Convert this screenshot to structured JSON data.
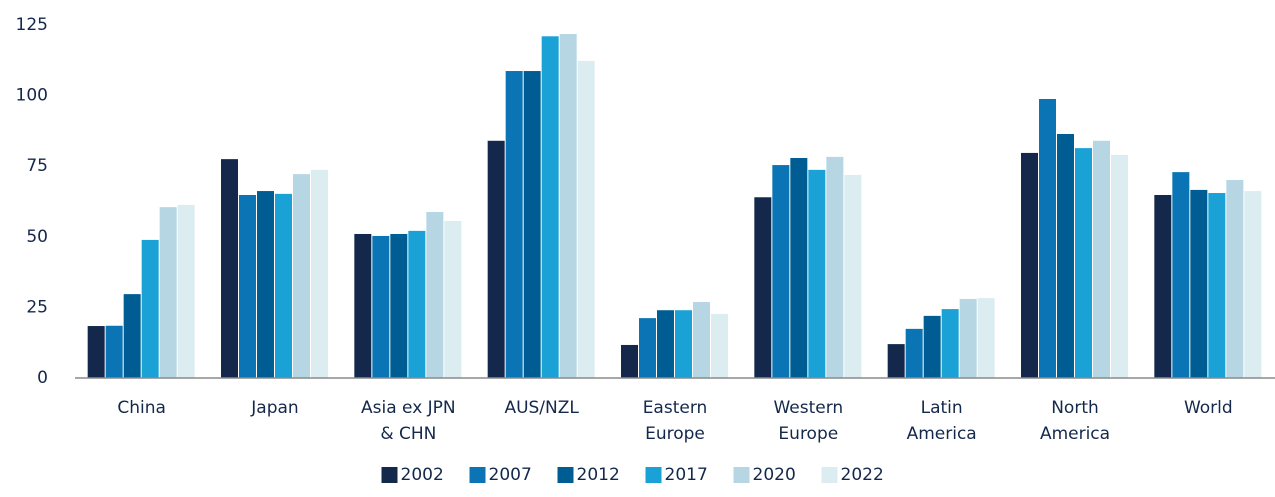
{
  "chart_data": {
    "type": "bar",
    "categories": [
      "China",
      "Japan",
      "Asia ex JPN\n& CHN",
      "AUS/NZL",
      "Eastern\nEurope",
      "Western\nEurope",
      "Latin\nAmerica",
      "North\nAmerica",
      "World"
    ],
    "series": [
      {
        "name": "2002",
        "color": "#14284b",
        "values": [
          18.4,
          77.5,
          51,
          84,
          11.7,
          64,
          12,
          79.7,
          64.8
        ]
      },
      {
        "name": "2007",
        "color": "#0a74b4",
        "values": [
          18.5,
          64.8,
          50.3,
          108.7,
          21.2,
          75.4,
          17.4,
          98.8,
          72.9
        ]
      },
      {
        "name": "2012",
        "color": "#005d93",
        "values": [
          29.7,
          66.2,
          51,
          108.7,
          24,
          77.9,
          22,
          86.4,
          66.6
        ]
      },
      {
        "name": "2017",
        "color": "#1aa2d6",
        "values": [
          48.9,
          65.2,
          52.1,
          121,
          24,
          73.7,
          24.4,
          81.4,
          65.5
        ]
      },
      {
        "name": "2020",
        "color": "#b6d6e4",
        "values": [
          60.5,
          72.2,
          58.8,
          121.8,
          26.9,
          78.3,
          28,
          84,
          70.1
        ]
      },
      {
        "name": "2022",
        "color": "#dcedf2",
        "values": [
          61.3,
          73.7,
          55.6,
          112.3,
          22.7,
          71.9,
          28.3,
          79,
          66.2
        ]
      }
    ],
    "ylim": [
      0,
      125
    ],
    "yticks": [
      0,
      25,
      50,
      75,
      100,
      125
    ],
    "grid": false,
    "legend": "bottom"
  }
}
